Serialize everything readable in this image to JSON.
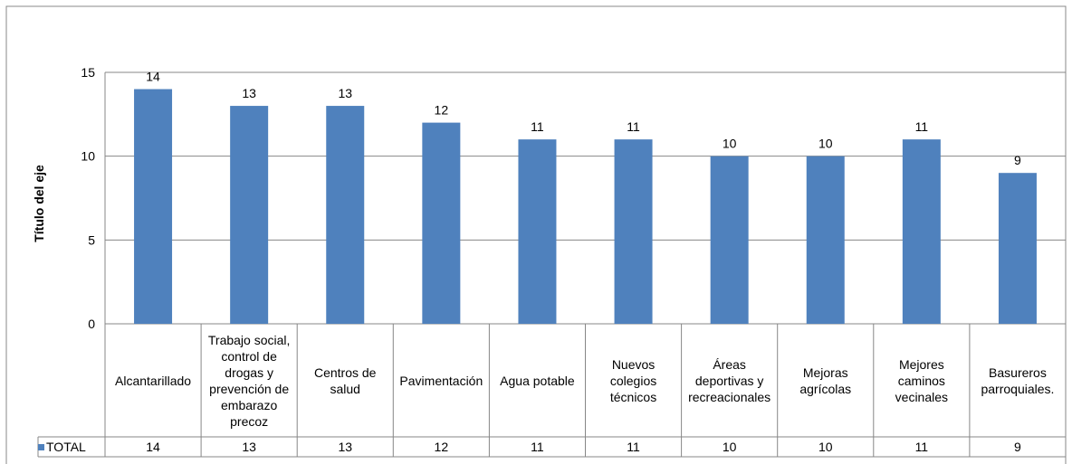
{
  "chart_data": {
    "type": "bar",
    "title": "",
    "ylabel": "Título del eje",
    "xlabel": "",
    "ylim": [
      0,
      15
    ],
    "yticks": [
      0,
      5,
      10,
      15
    ],
    "grid": true,
    "data_labels": true,
    "data_table": true,
    "categories": [
      "Alcantarillado",
      "Trabajo social, control de drogas y prevención de embarazo precoz",
      "Centros de salud",
      "Pavimentación",
      "Agua potable",
      "Nuevos colegios técnicos",
      "Áreas deportivas y recreacionales",
      "Mejoras agrícolas",
      "Mejores caminos vecinales",
      "Basureros parroquiales."
    ],
    "series": [
      {
        "name": "TOTAL",
        "values": [
          14,
          13,
          13,
          12,
          11,
          11,
          10,
          10,
          11,
          9
        ],
        "color": "#4F81BD"
      }
    ]
  }
}
